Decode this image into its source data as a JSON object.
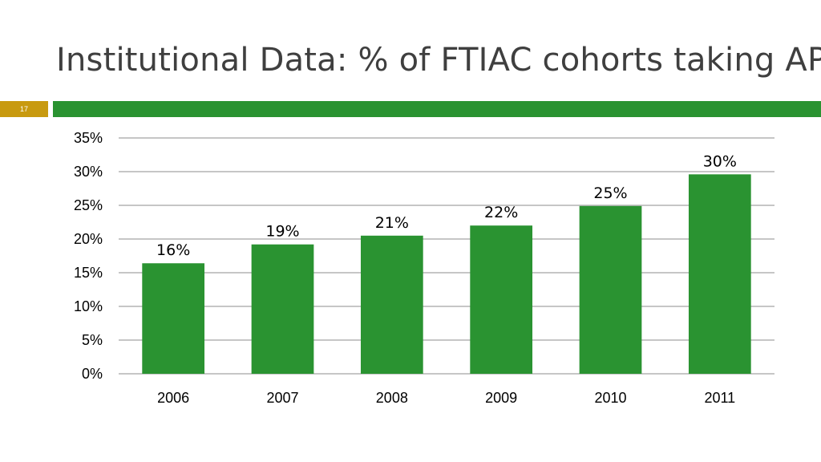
{
  "slide": {
    "title": "Institutional Data: % of FTIAC cohorts taking AP",
    "number": "17"
  },
  "colors": {
    "accent": "#2a9331",
    "slide_number_box": "#c89a10",
    "bar": "#2a9331",
    "gridline": "#8c8c8c",
    "title_text": "#3f3f3f"
  },
  "chart_data": {
    "type": "bar",
    "categories": [
      "2006",
      "2007",
      "2008",
      "2009",
      "2010",
      "2011"
    ],
    "values": [
      16.4,
      19.2,
      20.5,
      22.0,
      24.9,
      29.6
    ],
    "data_labels": [
      "16%",
      "19%",
      "21%",
      "22%",
      "25%",
      "30%"
    ],
    "ylim": [
      0,
      35
    ],
    "yticks": [
      0,
      5,
      10,
      15,
      20,
      25,
      30,
      35
    ],
    "ytick_labels": [
      "0%",
      "5%",
      "10%",
      "15%",
      "20%",
      "25%",
      "30%",
      "35%"
    ],
    "grid": true,
    "legend": "none"
  }
}
